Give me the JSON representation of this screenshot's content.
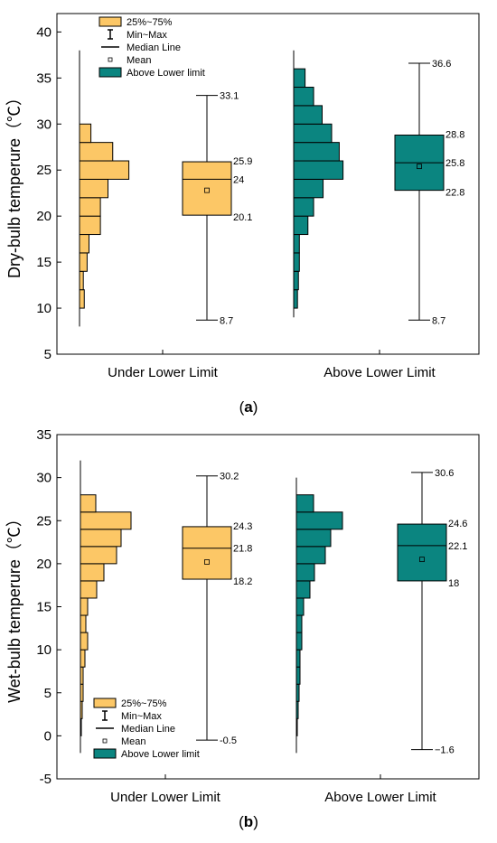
{
  "colors": {
    "under": "#FCC766",
    "above": "#0B8580",
    "edge": "#000000"
  },
  "legend": {
    "items": [
      {
        "icon": "box-icon",
        "label": "25%~75%",
        "color": "under"
      },
      {
        "icon": "whisker-icon",
        "label": "Min~Max"
      },
      {
        "icon": "median-line-icon",
        "label": "Median Line"
      },
      {
        "icon": "mean-marker-icon",
        "label": "Mean"
      },
      {
        "icon": "box-icon",
        "label": "Above Lower limit",
        "color": "above"
      }
    ]
  },
  "chart_data": [
    {
      "type": "box+histogram",
      "panel_label": "a",
      "ylabel": "Dry-bulb temperure（℃）",
      "ylim": [
        5,
        42
      ],
      "yticks": [
        5,
        10,
        15,
        20,
        25,
        30,
        35,
        40
      ],
      "categories": [
        "Under Lower Limit",
        "Above Lower Limit"
      ],
      "legend_position": "top-left",
      "boxes": [
        {
          "category": "Under Lower Limit",
          "min": 8.7,
          "q1": 20.1,
          "median": 24,
          "q3": 25.9,
          "max": 33.1,
          "mean": 22.8,
          "labels": {
            "max": "33.1",
            "q3": "25.9",
            "median": "24",
            "q1": "20.1",
            "min": "8.7"
          }
        },
        {
          "category": "Above Lower Limit",
          "min": 8.7,
          "q1": 22.8,
          "median": 25.8,
          "q3": 28.8,
          "max": 36.6,
          "mean": 25.4,
          "labels": {
            "max": "36.6",
            "q3": "28.8",
            "median": "25.8",
            "q1": "22.8",
            "min": "8.7"
          }
        }
      ],
      "histograms": [
        {
          "category": "Under Lower Limit",
          "bin_width": 2,
          "bins_low": [
            10,
            12,
            14,
            16,
            18,
            20,
            22,
            24,
            26,
            28
          ],
          "counts": [
            0.5,
            0.4,
            0.8,
            1.0,
            2.2,
            2.2,
            3.0,
            5.2,
            3.5,
            1.2
          ],
          "axis_range": [
            8,
            38
          ]
        },
        {
          "category": "Above Lower Limit",
          "bin_width": 2,
          "bins_low": [
            10,
            12,
            14,
            16,
            18,
            20,
            22,
            24,
            26,
            28,
            30,
            32,
            34
          ],
          "counts": [
            0.4,
            0.5,
            0.6,
            0.6,
            1.5,
            2.1,
            3.1,
            5.2,
            4.8,
            4.0,
            3.0,
            2.1,
            1.2
          ],
          "axis_range": [
            9,
            38
          ]
        }
      ]
    },
    {
      "type": "box+histogram",
      "panel_label": "b",
      "ylabel": "Wet-bulb temperure（℃）",
      "ylim": [
        -5,
        35
      ],
      "yticks": [
        -5,
        0,
        5,
        10,
        15,
        20,
        25,
        30,
        35
      ],
      "categories": [
        "Under Lower Limit",
        "Above Lower Limit"
      ],
      "legend_position": "bottom-left",
      "boxes": [
        {
          "category": "Under Lower Limit",
          "min": -0.5,
          "q1": 18.2,
          "median": 21.8,
          "q3": 24.3,
          "max": 30.2,
          "mean": 20.2,
          "labels": {
            "max": "30.2",
            "q3": "24.3",
            "median": "21.8",
            "q1": "18.2",
            "min": "-0.5"
          }
        },
        {
          "category": "Above Lower Limit",
          "min": -1.6,
          "q1": 18,
          "median": 22.1,
          "q3": 24.6,
          "max": 30.6,
          "mean": 20.5,
          "labels": {
            "max": "30.6",
            "q3": "24.6",
            "median": "22.1",
            "q1": "18",
            "min": "−1.6"
          }
        }
      ],
      "histograms": [
        {
          "category": "Under Lower Limit",
          "bin_width": 2,
          "bins_low": [
            0,
            2,
            4,
            6,
            8,
            10,
            12,
            14,
            16,
            18,
            20,
            22,
            24,
            26
          ],
          "counts": [
            0.1,
            0.2,
            0.3,
            0.3,
            0.5,
            0.8,
            0.6,
            0.8,
            1.8,
            2.6,
            4.0,
            4.5,
            5.6,
            1.7
          ],
          "axis_range": [
            -2,
            32
          ]
        },
        {
          "category": "Above Lower Limit",
          "bin_width": 2,
          "bins_low": [
            0,
            2,
            4,
            6,
            8,
            10,
            12,
            14,
            16,
            18,
            20,
            22,
            24,
            26
          ],
          "counts": [
            0.1,
            0.2,
            0.3,
            0.4,
            0.4,
            0.6,
            0.6,
            0.8,
            1.5,
            2.0,
            3.2,
            3.8,
            5.1,
            1.9
          ],
          "axis_range": [
            -2,
            30
          ]
        }
      ]
    }
  ]
}
